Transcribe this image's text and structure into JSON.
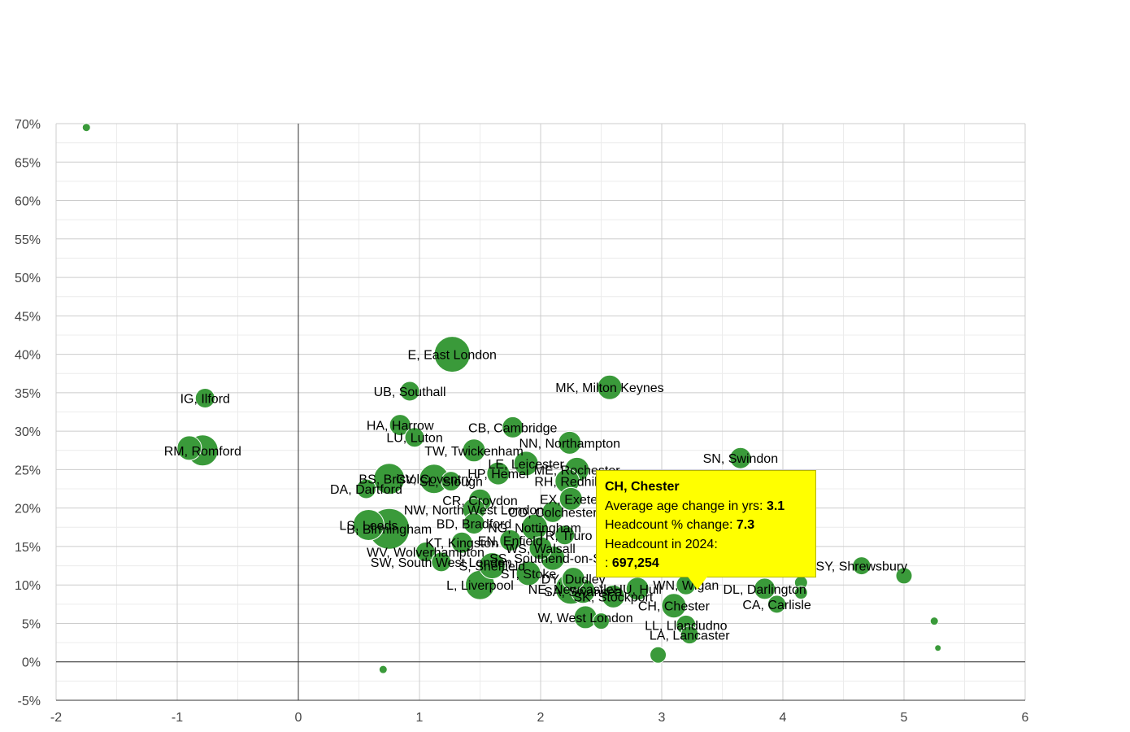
{
  "chart_data": {
    "type": "scatter",
    "title": "",
    "xlabel": "",
    "ylabel": "",
    "xlim": [
      -2,
      6
    ],
    "ylim": [
      -5,
      70
    ],
    "x_ticks": [
      "-2",
      "-1",
      "0",
      "1",
      "2",
      "3",
      "4",
      "5",
      "6"
    ],
    "y_ticks": [
      "-5%",
      "0%",
      "5%",
      "10%",
      "15%",
      "20%",
      "25%",
      "30%",
      "35%",
      "40%",
      "45%",
      "50%",
      "55%",
      "60%",
      "65%",
      "70%"
    ],
    "grid": true,
    "point_color": "#3a9a3a",
    "points": [
      {
        "label": "",
        "x": -1.75,
        "y": 69.5,
        "r": 5
      },
      {
        "label": "IG, Ilford",
        "x": -0.77,
        "y": 34.3,
        "r": 12
      },
      {
        "label": "RM, Romford",
        "x": -0.79,
        "y": 27.5,
        "r": 19
      },
      {
        "label": "",
        "x": -0.9,
        "y": 27.8,
        "r": 15
      },
      {
        "label": "E, East London",
        "x": 1.27,
        "y": 40.0,
        "r": 22
      },
      {
        "label": "UB, Southall",
        "x": 0.92,
        "y": 35.2,
        "r": 12
      },
      {
        "label": "MK, Milton Keynes",
        "x": 2.57,
        "y": 35.7,
        "r": 15
      },
      {
        "label": "HA, Harrow",
        "x": 0.84,
        "y": 30.8,
        "r": 13
      },
      {
        "label": "CB, Cambridge",
        "x": 1.77,
        "y": 30.5,
        "r": 13
      },
      {
        "label": "LU, Luton",
        "x": 0.96,
        "y": 29.2,
        "r": 12
      },
      {
        "label": "NN, Northampton",
        "x": 2.24,
        "y": 28.5,
        "r": 14
      },
      {
        "label": "TW, Twickenham",
        "x": 1.45,
        "y": 27.5,
        "r": 14
      },
      {
        "label": "SN, Swindon",
        "x": 3.65,
        "y": 26.5,
        "r": 13
      },
      {
        "label": "LE, Leicester",
        "x": 1.88,
        "y": 25.8,
        "r": 15
      },
      {
        "label": "ME, Rochester",
        "x": 2.3,
        "y": 25.0,
        "r": 15
      },
      {
        "label": "BS, Bristol",
        "x": 0.75,
        "y": 23.8,
        "r": 19
      },
      {
        "label": "CV, Coventry",
        "x": 1.12,
        "y": 23.8,
        "r": 18
      },
      {
        "label": "SL, Slough",
        "x": 1.26,
        "y": 23.5,
        "r": 12
      },
      {
        "label": "HP, Hemel",
        "x": 1.65,
        "y": 24.5,
        "r": 14
      },
      {
        "label": "RH, Redhill",
        "x": 2.22,
        "y": 23.5,
        "r": 15
      },
      {
        "label": "DA, Dartford",
        "x": 0.56,
        "y": 22.5,
        "r": 12
      },
      {
        "label": "CR, Croydon",
        "x": 1.5,
        "y": 21.0,
        "r": 14
      },
      {
        "label": "EX, Exeter",
        "x": 2.25,
        "y": 21.2,
        "r": 14
      },
      {
        "label": "NW, North West London",
        "x": 1.45,
        "y": 19.8,
        "r": 14
      },
      {
        "label": "CO, Colchester",
        "x": 2.1,
        "y": 19.5,
        "r": 13
      },
      {
        "label": "LS, Leeds",
        "x": 0.58,
        "y": 17.8,
        "r": 19
      },
      {
        "label": "B, Birmingham",
        "x": 0.75,
        "y": 17.3,
        "r": 25
      },
      {
        "label": "BD, Bradford",
        "x": 1.45,
        "y": 18.0,
        "r": 13
      },
      {
        "label": "NG, Nottingham",
        "x": 1.95,
        "y": 17.5,
        "r": 16
      },
      {
        "label": "TR, Truro",
        "x": 2.2,
        "y": 16.5,
        "r": 12
      },
      {
        "label": "KT, Kingston",
        "x": 1.35,
        "y": 15.5,
        "r": 13
      },
      {
        "label": "EN, Enfield",
        "x": 1.75,
        "y": 15.8,
        "r": 13
      },
      {
        "label": "WS, Walsall",
        "x": 2.0,
        "y": 14.8,
        "r": 14
      },
      {
        "label": "WV, Wolverhampton",
        "x": 1.05,
        "y": 14.3,
        "r": 12
      },
      {
        "label": "SW, South West London",
        "x": 1.18,
        "y": 13.0,
        "r": 12
      },
      {
        "label": "SS, Southend-on-Sea",
        "x": 2.1,
        "y": 13.5,
        "r": 15
      },
      {
        "label": "S, Sheffield",
        "x": 1.6,
        "y": 12.5,
        "r": 16
      },
      {
        "label": "L, Liverpool",
        "x": 1.5,
        "y": 10.0,
        "r": 18
      },
      {
        "label": "ST, Stoke",
        "x": 1.9,
        "y": 11.5,
        "r": 15
      },
      {
        "label": "DY, Dudley",
        "x": 2.27,
        "y": 10.8,
        "r": 14
      },
      {
        "label": "NE, Newcastle",
        "x": 2.25,
        "y": 9.5,
        "r": 19
      },
      {
        "label": "SA, Swansea",
        "x": 2.35,
        "y": 9.2,
        "r": 15
      },
      {
        "label": "SK, Stockport",
        "x": 2.6,
        "y": 8.5,
        "r": 14
      },
      {
        "label": "HU, Hull",
        "x": 2.8,
        "y": 9.5,
        "r": 14
      },
      {
        "label": "WN, Wigan",
        "x": 3.2,
        "y": 10.0,
        "r": 12
      },
      {
        "label": "CH, Chester",
        "x": 3.1,
        "y": 7.3,
        "r": 15
      },
      {
        "label": "DL, Darlington",
        "x": 3.85,
        "y": 9.5,
        "r": 13
      },
      {
        "label": "CA, Carlisle",
        "x": 3.95,
        "y": 7.5,
        "r": 11
      },
      {
        "label": "SY, Shrewsbury",
        "x": 4.65,
        "y": 12.5,
        "r": 11
      },
      {
        "label": "",
        "x": 4.15,
        "y": 10.3,
        "r": 8
      },
      {
        "label": "",
        "x": 4.15,
        "y": 9.0,
        "r": 8
      },
      {
        "label": "",
        "x": 5.0,
        "y": 11.2,
        "r": 10
      },
      {
        "label": "",
        "x": 5.25,
        "y": 5.3,
        "r": 5
      },
      {
        "label": "",
        "x": 5.28,
        "y": 1.8,
        "r": 4
      },
      {
        "label": "W, West London",
        "x": 2.37,
        "y": 5.8,
        "r": 14
      },
      {
        "label": "",
        "x": 2.5,
        "y": 5.3,
        "r": 10
      },
      {
        "label": "LL, Llandudno",
        "x": 3.2,
        "y": 4.8,
        "r": 12
      },
      {
        "label": "LA, Lancaster",
        "x": 3.23,
        "y": 3.5,
        "r": 11
      },
      {
        "label": "",
        "x": 2.97,
        "y": 0.9,
        "r": 10
      },
      {
        "label": "",
        "x": 0.7,
        "y": -1.0,
        "r": 5
      }
    ],
    "tooltip": {
      "title": "CH, Chester",
      "rows": [
        {
          "label": "Average age change in yrs:",
          "value": "3.1"
        },
        {
          "label": "Headcount % change:",
          "value": "7.3"
        },
        {
          "label": "Headcount in 2024:",
          "value": ""
        },
        {
          "label": ":",
          "value": "697,254"
        }
      ]
    }
  }
}
